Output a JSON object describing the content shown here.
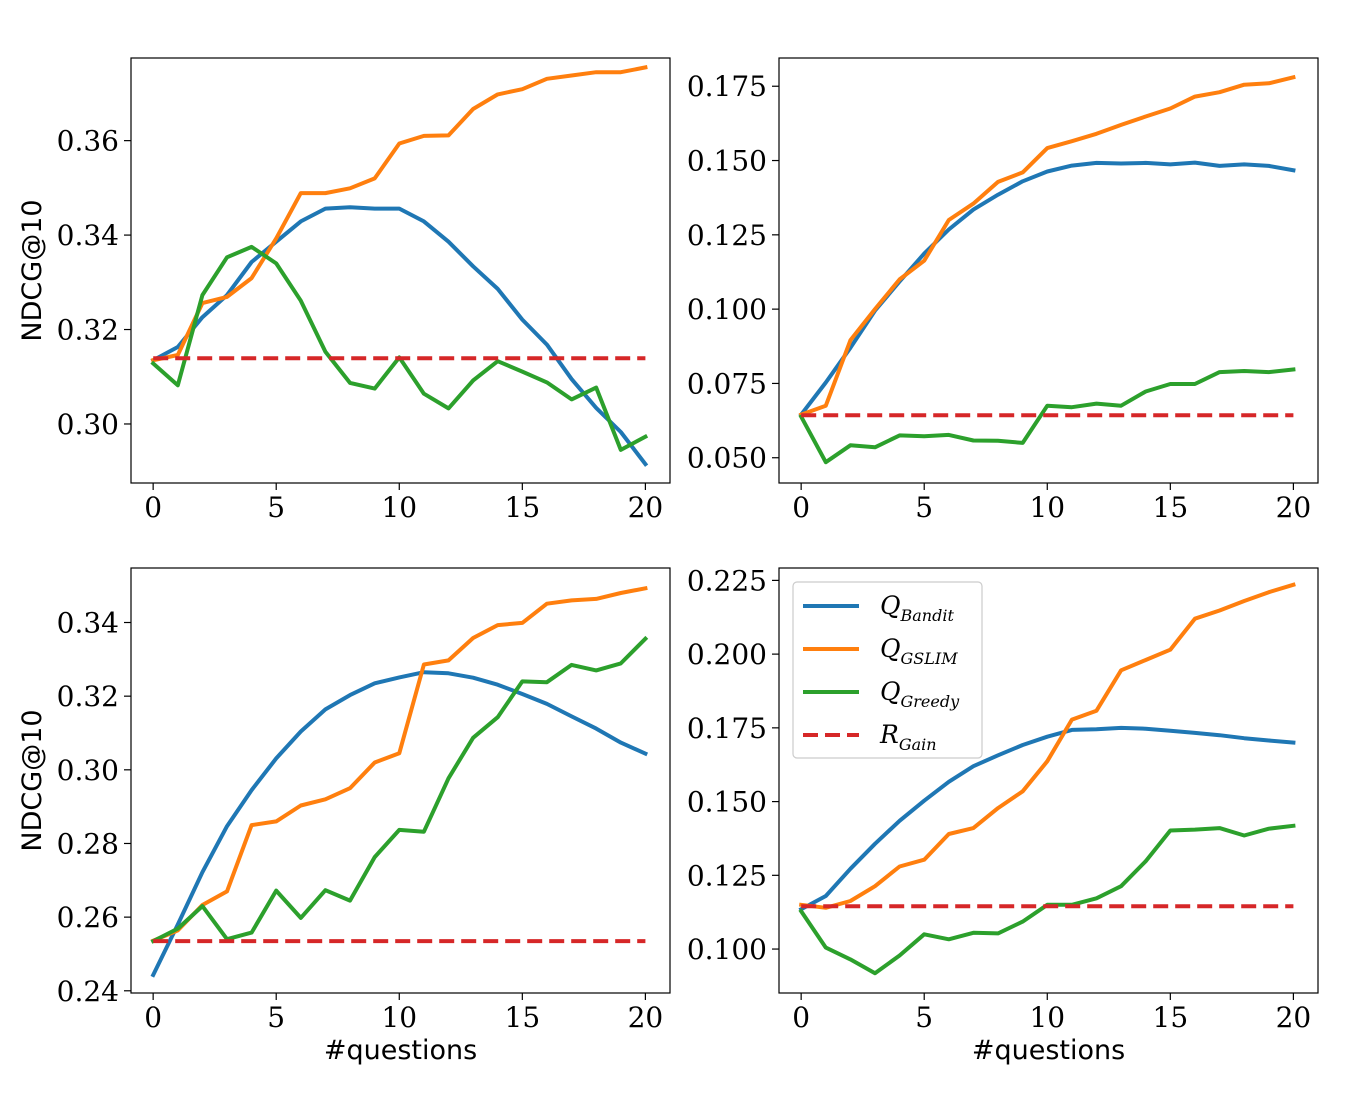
{
  "chart_data": [
    {
      "type": "line",
      "panel": "top-left",
      "xlabel": "",
      "ylabel": "NDCG@10",
      "xlim": [
        -0.9,
        21
      ],
      "ylim": [
        0.2875,
        0.3775
      ],
      "xticks": [
        0,
        5,
        10,
        15,
        20
      ],
      "xtick_labels": [
        "0",
        "5",
        "10",
        "15",
        "20"
      ],
      "yticks": [
        0.3,
        0.32,
        0.34,
        0.36
      ],
      "ytick_labels": [
        "0.30",
        "0.32",
        "0.34",
        "0.36"
      ],
      "x": [
        0,
        1,
        2,
        3,
        4,
        5,
        6,
        7,
        8,
        9,
        10,
        11,
        12,
        13,
        14,
        15,
        16,
        17,
        18,
        19,
        20
      ],
      "series": [
        {
          "name": "Q_Bandit",
          "color": "#1f77b4",
          "dash": "solid",
          "values": [
            0.3135,
            0.3163,
            0.3226,
            0.3273,
            0.3343,
            0.3386,
            0.3429,
            0.3456,
            0.3459,
            0.3456,
            0.3456,
            0.3429,
            0.3386,
            0.3334,
            0.3286,
            0.3221,
            0.3168,
            0.3095,
            0.3034,
            0.2983,
            0.2915
          ]
        },
        {
          "name": "Q_GSLIM",
          "color": "#ff7f0e",
          "dash": "solid",
          "values": [
            0.3135,
            0.3146,
            0.3256,
            0.3269,
            0.3309,
            0.3393,
            0.3489,
            0.3489,
            0.3499,
            0.352,
            0.3594,
            0.361,
            0.3611,
            0.3667,
            0.3698,
            0.3709,
            0.3731,
            0.3738,
            0.3745,
            0.3745,
            0.3755
          ]
        },
        {
          "name": "Q_Greedy",
          "color": "#2ca02c",
          "dash": "solid",
          "values": [
            0.3128,
            0.3082,
            0.3273,
            0.3353,
            0.3375,
            0.334,
            0.3261,
            0.3153,
            0.3087,
            0.3075,
            0.3141,
            0.3064,
            0.3033,
            0.3092,
            0.3133,
            0.3111,
            0.3088,
            0.3052,
            0.3077,
            0.2945,
            0.2973
          ]
        },
        {
          "name": "R_Gain",
          "color": "#d62728",
          "dash": "dashed",
          "values": [
            0.3139,
            0.3139,
            0.3139,
            0.3139,
            0.3139,
            0.3139,
            0.3139,
            0.3139,
            0.3139,
            0.3139,
            0.3139,
            0.3139,
            0.3139,
            0.3139,
            0.3139,
            0.3139,
            0.3139,
            0.3139,
            0.3139,
            0.3139,
            0.3139
          ]
        }
      ]
    },
    {
      "type": "line",
      "panel": "top-right",
      "xlabel": "",
      "ylabel": "",
      "xlim": [
        -0.9,
        21
      ],
      "ylim": [
        0.0415,
        0.1845
      ],
      "xticks": [
        0,
        5,
        10,
        15,
        20
      ],
      "xtick_labels": [
        "0",
        "5",
        "10",
        "15",
        "20"
      ],
      "yticks": [
        0.05,
        0.075,
        0.1,
        0.125,
        0.15,
        0.175
      ],
      "ytick_labels": [
        "0.050",
        "0.075",
        "0.100",
        "0.125",
        "0.150",
        "0.175"
      ],
      "x": [
        0,
        1,
        2,
        3,
        4,
        5,
        6,
        7,
        8,
        9,
        10,
        11,
        12,
        13,
        14,
        15,
        16,
        17,
        18,
        19,
        20
      ],
      "series": [
        {
          "name": "Q_Bandit",
          "color": "#1f77b4",
          "dash": "solid",
          "values": [
            0.0645,
            0.0753,
            0.087,
            0.0995,
            0.1093,
            0.1187,
            0.1268,
            0.1335,
            0.1385,
            0.143,
            0.1463,
            0.1483,
            0.1492,
            0.149,
            0.1492,
            0.1487,
            0.1493,
            0.1482,
            0.1487,
            0.1482,
            0.1467
          ]
        },
        {
          "name": "Q_GSLIM",
          "color": "#ff7f0e",
          "dash": "solid",
          "values": [
            0.0645,
            0.0675,
            0.0895,
            0.1,
            0.11,
            0.1163,
            0.13,
            0.1355,
            0.1428,
            0.146,
            0.1542,
            0.1565,
            0.159,
            0.162,
            0.1648,
            0.1675,
            0.1715,
            0.173,
            0.1755,
            0.176,
            0.178
          ]
        },
        {
          "name": "Q_Greedy",
          "color": "#2ca02c",
          "dash": "solid",
          "values": [
            0.0638,
            0.0485,
            0.0542,
            0.0535,
            0.0575,
            0.0572,
            0.0577,
            0.0558,
            0.0557,
            0.055,
            0.0675,
            0.067,
            0.0682,
            0.0675,
            0.0723,
            0.0748,
            0.0748,
            0.0788,
            0.0792,
            0.0788,
            0.0797
          ]
        },
        {
          "name": "R_Gain",
          "color": "#d62728",
          "dash": "dashed",
          "values": [
            0.0643,
            0.0643,
            0.0643,
            0.0643,
            0.0643,
            0.0643,
            0.0643,
            0.0643,
            0.0643,
            0.0643,
            0.0643,
            0.0643,
            0.0643,
            0.0643,
            0.0643,
            0.0643,
            0.0643,
            0.0643,
            0.0643,
            0.0643,
            0.0643
          ]
        }
      ]
    },
    {
      "type": "line",
      "panel": "bottom-left",
      "xlabel": "#questions",
      "ylabel": "NDCG@10",
      "xlim": [
        -0.9,
        21
      ],
      "ylim": [
        0.2394,
        0.3548
      ],
      "xticks": [
        0,
        5,
        10,
        15,
        20
      ],
      "xtick_labels": [
        "0",
        "5",
        "10",
        "15",
        "20"
      ],
      "yticks": [
        0.24,
        0.26,
        0.28,
        0.3,
        0.32,
        0.34
      ],
      "ytick_labels": [
        "0.24",
        "0.26",
        "0.28",
        "0.30",
        "0.32",
        "0.34"
      ],
      "x": [
        0,
        1,
        2,
        3,
        4,
        5,
        6,
        7,
        8,
        9,
        10,
        11,
        12,
        13,
        14,
        15,
        16,
        17,
        18,
        19,
        20
      ],
      "series": [
        {
          "name": "Q_Bandit",
          "color": "#1f77b4",
          "dash": "solid",
          "values": [
            0.2443,
            0.258,
            0.2722,
            0.2847,
            0.2945,
            0.3031,
            0.3104,
            0.3164,
            0.3203,
            0.3235,
            0.3251,
            0.3265,
            0.3262,
            0.325,
            0.3231,
            0.3206,
            0.3179,
            0.3145,
            0.3112,
            0.3074,
            0.3044
          ]
        },
        {
          "name": "Q_GSLIM",
          "color": "#ff7f0e",
          "dash": "solid",
          "values": [
            0.2536,
            0.2564,
            0.2633,
            0.267,
            0.285,
            0.286,
            0.2903,
            0.292,
            0.295,
            0.302,
            0.3045,
            0.3286,
            0.3297,
            0.3358,
            0.3393,
            0.3399,
            0.3451,
            0.346,
            0.3464,
            0.348,
            0.3493
          ]
        },
        {
          "name": "Q_Greedy",
          "color": "#2ca02c",
          "dash": "solid",
          "values": [
            0.2535,
            0.2569,
            0.263,
            0.254,
            0.2558,
            0.2672,
            0.2598,
            0.2673,
            0.2645,
            0.2763,
            0.2837,
            0.2832,
            0.2977,
            0.3087,
            0.3143,
            0.324,
            0.3238,
            0.3285,
            0.327,
            0.3289,
            0.3356
          ]
        },
        {
          "name": "R_Gain",
          "color": "#d62728",
          "dash": "dashed",
          "values": [
            0.2535,
            0.2535,
            0.2535,
            0.2535,
            0.2535,
            0.2535,
            0.2535,
            0.2535,
            0.2535,
            0.2535,
            0.2535,
            0.2535,
            0.2535,
            0.2535,
            0.2535,
            0.2535,
            0.2535,
            0.2535,
            0.2535,
            0.2535,
            0.2535
          ]
        }
      ]
    },
    {
      "type": "line",
      "panel": "bottom-right",
      "xlabel": "#questions",
      "ylabel": "",
      "xlim": [
        -0.9,
        21
      ],
      "ylim": [
        0.0851,
        0.2292
      ],
      "xticks": [
        0,
        5,
        10,
        15,
        20
      ],
      "xtick_labels": [
        "0",
        "5",
        "10",
        "15",
        "20"
      ],
      "yticks": [
        0.1,
        0.125,
        0.15,
        0.175,
        0.2,
        0.225
      ],
      "ytick_labels": [
        "0.100",
        "0.125",
        "0.150",
        "0.175",
        "0.200",
        "0.225"
      ],
      "x": [
        0,
        1,
        2,
        3,
        4,
        5,
        6,
        7,
        8,
        9,
        10,
        11,
        12,
        13,
        14,
        15,
        16,
        17,
        18,
        19,
        20
      ],
      "series": [
        {
          "name": "Q_Bandit",
          "color": "#1f77b4",
          "dash": "solid",
          "values": [
            0.1135,
            0.118,
            0.1272,
            0.1357,
            0.1435,
            0.1503,
            0.1567,
            0.162,
            0.1657,
            0.1692,
            0.172,
            0.1743,
            0.1745,
            0.175,
            0.1747,
            0.174,
            0.1733,
            0.1725,
            0.1715,
            0.1707,
            0.17
          ]
        },
        {
          "name": "Q_GSLIM",
          "color": "#ff7f0e",
          "dash": "solid",
          "values": [
            0.115,
            0.114,
            0.1163,
            0.1213,
            0.128,
            0.1303,
            0.139,
            0.141,
            0.1478,
            0.1535,
            0.1637,
            0.1778,
            0.1808,
            0.1945,
            0.198,
            0.2015,
            0.212,
            0.2148,
            0.218,
            0.221,
            0.2235
          ]
        },
        {
          "name": "Q_Greedy",
          "color": "#2ca02c",
          "dash": "solid",
          "values": [
            0.1128,
            0.1005,
            0.0965,
            0.0918,
            0.0978,
            0.105,
            0.1033,
            0.1055,
            0.1053,
            0.1093,
            0.115,
            0.115,
            0.1172,
            0.1213,
            0.1298,
            0.1402,
            0.1405,
            0.141,
            0.1385,
            0.1408,
            0.1418
          ]
        },
        {
          "name": "R_Gain",
          "color": "#d62728",
          "dash": "dashed",
          "values": [
            0.1145,
            0.1145,
            0.1145,
            0.1145,
            0.1145,
            0.1145,
            0.1145,
            0.1145,
            0.1145,
            0.1145,
            0.1145,
            0.1145,
            0.1145,
            0.1145,
            0.1145,
            0.1145,
            0.1145,
            0.1145,
            0.1145,
            0.1145,
            0.1145
          ]
        }
      ]
    }
  ],
  "legend": {
    "placement": "inside bottom-right panel, upper-left corner",
    "entries": [
      {
        "base": "Q",
        "sub": "Bandit",
        "color": "#1f77b4",
        "dash": "solid"
      },
      {
        "base": "Q",
        "sub": "GSLIM",
        "color": "#ff7f0e",
        "dash": "solid"
      },
      {
        "base": "Q",
        "sub": "Greedy",
        "color": "#2ca02c",
        "dash": "solid"
      },
      {
        "base": "R",
        "sub": "Gain",
        "color": "#d62728",
        "dash": "dashed"
      }
    ]
  }
}
